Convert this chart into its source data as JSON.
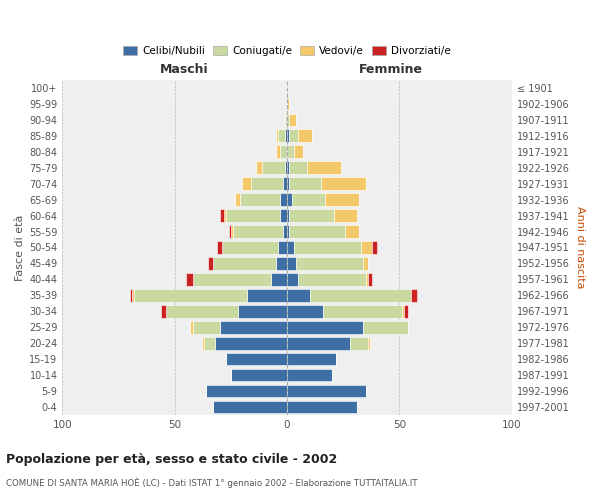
{
  "age_groups": [
    "0-4",
    "5-9",
    "10-14",
    "15-19",
    "20-24",
    "25-29",
    "30-34",
    "35-39",
    "40-44",
    "45-49",
    "50-54",
    "55-59",
    "60-64",
    "65-69",
    "70-74",
    "75-79",
    "80-84",
    "85-89",
    "90-94",
    "95-99",
    "100+"
  ],
  "birth_years": [
    "1997-2001",
    "1992-1996",
    "1987-1991",
    "1982-1986",
    "1977-1981",
    "1972-1976",
    "1967-1971",
    "1962-1966",
    "1957-1961",
    "1952-1956",
    "1947-1951",
    "1942-1946",
    "1937-1941",
    "1932-1936",
    "1927-1931",
    "1922-1926",
    "1917-1921",
    "1912-1916",
    "1907-1911",
    "1902-1906",
    "≤ 1901"
  ],
  "male": {
    "celibi": [
      33,
      36,
      25,
      27,
      32,
      30,
      22,
      18,
      7,
      5,
      4,
      2,
      3,
      3,
      2,
      1,
      0,
      1,
      0,
      0,
      0
    ],
    "coniugati": [
      0,
      0,
      0,
      0,
      5,
      12,
      32,
      50,
      35,
      28,
      25,
      22,
      24,
      18,
      14,
      10,
      3,
      3,
      1,
      0,
      0
    ],
    "vedovi": [
      0,
      0,
      0,
      0,
      1,
      1,
      0,
      1,
      0,
      0,
      0,
      1,
      1,
      2,
      4,
      3,
      2,
      1,
      0,
      0,
      0
    ],
    "divorziati": [
      0,
      0,
      0,
      0,
      0,
      0,
      2,
      1,
      3,
      2,
      2,
      1,
      2,
      0,
      0,
      0,
      0,
      0,
      0,
      0,
      0
    ]
  },
  "female": {
    "nubili": [
      31,
      35,
      20,
      22,
      28,
      34,
      16,
      10,
      5,
      4,
      3,
      1,
      1,
      2,
      1,
      1,
      0,
      1,
      0,
      0,
      0
    ],
    "coniugate": [
      0,
      0,
      0,
      0,
      8,
      20,
      35,
      45,
      30,
      30,
      30,
      25,
      20,
      15,
      14,
      8,
      3,
      4,
      1,
      0,
      0
    ],
    "vedove": [
      0,
      0,
      0,
      0,
      1,
      0,
      1,
      0,
      1,
      2,
      5,
      6,
      10,
      15,
      20,
      15,
      4,
      6,
      3,
      1,
      0
    ],
    "divorziate": [
      0,
      0,
      0,
      0,
      0,
      0,
      2,
      3,
      2,
      0,
      2,
      0,
      0,
      0,
      0,
      0,
      0,
      0,
      0,
      0,
      0
    ]
  },
  "colors": {
    "celibi": "#3d6fa5",
    "coniugati": "#c8d9a2",
    "vedovi": "#f5c96a",
    "divorziati": "#cc2222"
  },
  "title": "Popolazione per età, sesso e stato civile - 2002",
  "subtitle": "COMUNE DI SANTA MARIA HOÈ (LC) - Dati ISTAT 1° gennaio 2002 - Elaborazione TUTTAITALIA.IT",
  "ylabel_left": "Fasce di età",
  "ylabel_right": "Anni di nascita",
  "xlim": 100,
  "background_color": "#ffffff",
  "plot_bg": "#efefef"
}
